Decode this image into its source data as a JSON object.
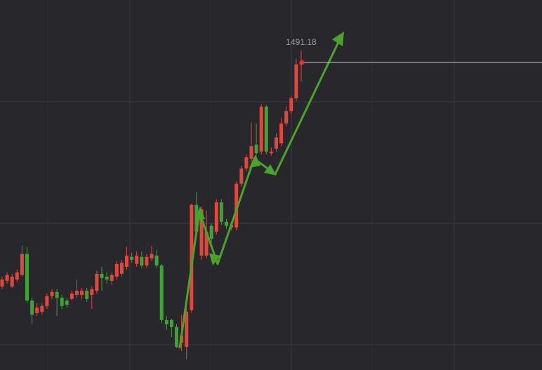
{
  "chart_data": {
    "type": "candlestick",
    "ylim": [
      1416.7,
      1506.3
    ],
    "up_color": "#e0473d",
    "down_color": "#3ea334",
    "last_price_color": "#c8c8c8",
    "open": [
      1436.9,
      1438.3,
      1436.9,
      1438.6,
      1439.7,
      1444.8,
      1433.5,
      1430.5,
      1430.8,
      1432.2,
      1434.6,
      1435.6,
      1434.2,
      1433.5,
      1433.9,
      1434.9,
      1434.9,
      1435.9,
      1434.9,
      1435.9,
      1440.0,
      1439.3,
      1438.3,
      1439.3,
      1440.0,
      1441.7,
      1444.1,
      1442.4,
      1444.1,
      1442.0,
      1443.7,
      1444.4,
      1442.0,
      1428.8,
      1428.8,
      1427.1,
      1423.3,
      1422.3,
      1431.2,
      1456.7,
      1444.4,
      1444.4,
      1451.6,
      1450.2,
      1457.3,
      1452.6,
      1451.2,
      1451.2,
      1461.8,
      1465.5,
      1467.9,
      1471.3,
      1469.6,
      1480.5,
      1469.2,
      1470.3,
      1471.6,
      1476.4,
      1479.4,
      1482.5,
      1490.7
    ],
    "high": [
      1439.3,
      1440.3,
      1440.0,
      1441.0,
      1446.8,
      1446.5,
      1434.2,
      1432.9,
      1432.9,
      1435.2,
      1436.3,
      1436.3,
      1434.9,
      1434.2,
      1435.9,
      1438.6,
      1436.6,
      1436.6,
      1436.9,
      1440.7,
      1441.7,
      1440.3,
      1440.3,
      1443.1,
      1443.4,
      1446.5,
      1445.1,
      1445.4,
      1445.4,
      1444.8,
      1446.8,
      1445.8,
      1442.4,
      1429.8,
      1429.1,
      1427.8,
      1430.1,
      1433.5,
      1457.0,
      1459.7,
      1456.3,
      1455.3,
      1452.2,
      1458.0,
      1458.0,
      1453.3,
      1452.6,
      1462.4,
      1466.2,
      1468.9,
      1476.7,
      1476.4,
      1481.1,
      1480.8,
      1470.6,
      1474.0,
      1477.7,
      1480.5,
      1483.2,
      1492.0,
      1494.1
    ],
    "low": [
      1436.3,
      1437.6,
      1436.6,
      1438.0,
      1439.3,
      1432.9,
      1427.8,
      1429.8,
      1430.1,
      1431.5,
      1433.9,
      1429.8,
      1431.5,
      1431.8,
      1433.5,
      1434.2,
      1433.9,
      1433.2,
      1431.5,
      1435.2,
      1435.9,
      1437.6,
      1437.3,
      1438.6,
      1439.3,
      1441.0,
      1442.7,
      1441.7,
      1441.4,
      1441.4,
      1443.1,
      1441.4,
      1428.1,
      1426.4,
      1424.7,
      1422.0,
      1421.3,
      1419.3,
      1430.5,
      1449.5,
      1443.4,
      1443.7,
      1447.5,
      1449.5,
      1451.9,
      1450.9,
      1450.5,
      1450.5,
      1461.1,
      1464.8,
      1467.2,
      1468.6,
      1468.9,
      1468.9,
      1468.6,
      1469.6,
      1470.9,
      1475.7,
      1478.8,
      1481.8,
      1486.6
    ],
    "close": [
      1438.6,
      1439.7,
      1439.3,
      1440.3,
      1444.8,
      1433.5,
      1430.1,
      1431.8,
      1432.2,
      1434.6,
      1435.6,
      1434.2,
      1432.2,
      1432.5,
      1435.2,
      1435.9,
      1435.9,
      1433.9,
      1436.3,
      1440.0,
      1439.0,
      1438.6,
      1439.7,
      1442.4,
      1442.7,
      1444.4,
      1443.4,
      1444.4,
      1442.0,
      1444.1,
      1444.8,
      1442.0,
      1428.8,
      1427.8,
      1427.1,
      1422.3,
      1425.0,
      1430.8,
      1456.7,
      1450.2,
      1455.6,
      1450.2,
      1448.5,
      1457.3,
      1452.6,
      1451.6,
      1451.9,
      1461.8,
      1465.5,
      1468.2,
      1470.9,
      1469.2,
      1480.5,
      1469.6,
      1469.6,
      1473.0,
      1476.4,
      1479.4,
      1482.5,
      1490.7,
      1491.18
    ]
  }
}
